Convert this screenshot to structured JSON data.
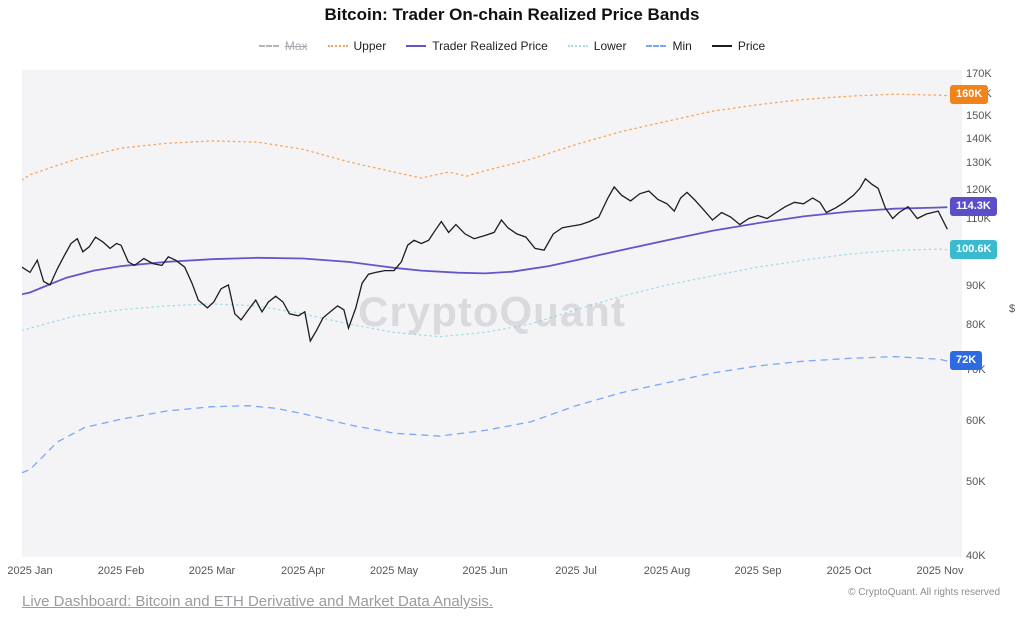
{
  "title": "Bitcoin: Trader On-chain Realized Price Bands",
  "watermark": "CryptoQuant",
  "legend": {
    "items": [
      {
        "label": "Max",
        "style": "dashed",
        "color": "#b4b4ba",
        "disabled": true
      },
      {
        "label": "Upper",
        "style": "dotted",
        "color": "#f9a35c",
        "disabled": false
      },
      {
        "label": "Trader Realized Price",
        "style": "solid",
        "color": "#6257c9",
        "disabled": false
      },
      {
        "label": "Lower",
        "style": "dotted",
        "color": "#a4dbe8",
        "disabled": false
      },
      {
        "label": "Min",
        "style": "dashed",
        "color": "#7aa7f8",
        "disabled": false
      },
      {
        "label": "Price",
        "style": "solid",
        "color": "#1c1c21",
        "disabled": false
      }
    ]
  },
  "axes": {
    "y_unit": "$",
    "y_scale": "log",
    "y_ticks": [
      {
        "v": 170,
        "label": "170K"
      },
      {
        "v": 160,
        "label": "160K"
      },
      {
        "v": 150,
        "label": "150K"
      },
      {
        "v": 140,
        "label": "140K"
      },
      {
        "v": 130,
        "label": "130K"
      },
      {
        "v": 120,
        "label": "120K"
      },
      {
        "v": 110,
        "label": "110K"
      },
      {
        "v": 100,
        "label": "100K"
      },
      {
        "v": 90,
        "label": "90K"
      },
      {
        "v": 80,
        "label": "80K"
      },
      {
        "v": 70,
        "label": "70K"
      },
      {
        "v": 60,
        "label": "60K"
      },
      {
        "v": 50,
        "label": "50K"
      },
      {
        "v": 40,
        "label": "40K"
      }
    ],
    "x_ticks": [
      "2025 Jan",
      "2025 Feb",
      "2025 Mar",
      "2025 Apr",
      "2025 May",
      "2025 Jun",
      "2025 Jul",
      "2025 Aug",
      "2025 Sep",
      "2025 Oct",
      "2025 Nov"
    ]
  },
  "badges": [
    {
      "series": "Upper",
      "label": "160K",
      "value_k": 160,
      "color": "#f2821a"
    },
    {
      "series": "Trader Realized Price",
      "label": "114.3K",
      "value_k": 114.3,
      "color": "#5b4ec8"
    },
    {
      "series": "Lower",
      "label": "100.6K",
      "value_k": 100.6,
      "color": "#3bb9cf"
    },
    {
      "series": "Min",
      "label": "72K",
      "value_k": 72,
      "color": "#2d6ce0"
    }
  ],
  "chart_data": {
    "type": "line",
    "title": "Bitcoin: Trader On-chain Realized Price Bands",
    "x_unit": "months of 2025 (Jan=0 .. Nov=10), values in thousands of USD",
    "ylim_k": [
      40,
      170
    ],
    "y_scale": "log",
    "grid": false,
    "legend_position": "top",
    "series": [
      {
        "name": "Max",
        "points": []
      },
      {
        "name": "Upper",
        "points": [
          [
            -0.09,
            124
          ],
          [
            0,
            126
          ],
          [
            0.25,
            129
          ],
          [
            0.5,
            132
          ],
          [
            1,
            136.5
          ],
          [
            1.5,
            138.5
          ],
          [
            2,
            139.5
          ],
          [
            2.5,
            139
          ],
          [
            3,
            136
          ],
          [
            3.5,
            131
          ],
          [
            4,
            127
          ],
          [
            4.3,
            124.8
          ],
          [
            4.6,
            127
          ],
          [
            4.8,
            125.5
          ],
          [
            5,
            127.5
          ],
          [
            5.5,
            132
          ],
          [
            6,
            138
          ],
          [
            6.5,
            143.5
          ],
          [
            7,
            148
          ],
          [
            7.5,
            152.5
          ],
          [
            8,
            155.5
          ],
          [
            8.5,
            158
          ],
          [
            9,
            159.5
          ],
          [
            9.5,
            160.5
          ],
          [
            10,
            160
          ],
          [
            10.08,
            159.8
          ]
        ]
      },
      {
        "name": "Trader Realized Price",
        "points": [
          [
            -0.09,
            88
          ],
          [
            0,
            88.5
          ],
          [
            0.2,
            90.5
          ],
          [
            0.4,
            92.5
          ],
          [
            0.7,
            94.5
          ],
          [
            1,
            95.8
          ],
          [
            1.5,
            97
          ],
          [
            2,
            97.8
          ],
          [
            2.5,
            98.2
          ],
          [
            3,
            98
          ],
          [
            3.5,
            97
          ],
          [
            4,
            95.3
          ],
          [
            4.3,
            94.5
          ],
          [
            4.7,
            93.9
          ],
          [
            5,
            93.7
          ],
          [
            5.3,
            94.2
          ],
          [
            5.7,
            95.8
          ],
          [
            6,
            97.5
          ],
          [
            6.5,
            100.5
          ],
          [
            7,
            103.5
          ],
          [
            7.5,
            106.5
          ],
          [
            8,
            109
          ],
          [
            8.5,
            111.2
          ],
          [
            9,
            112.8
          ],
          [
            9.5,
            113.8
          ],
          [
            10,
            114.2
          ],
          [
            10.08,
            114.3
          ]
        ]
      },
      {
        "name": "Lower",
        "points": [
          [
            -0.09,
            79
          ],
          [
            0,
            79.5
          ],
          [
            0.5,
            82.5
          ],
          [
            1,
            84
          ],
          [
            1.5,
            85
          ],
          [
            2,
            85.5
          ],
          [
            2.5,
            85
          ],
          [
            3,
            83
          ],
          [
            3.5,
            80.5
          ],
          [
            4,
            78.5
          ],
          [
            4.5,
            77.5
          ],
          [
            5,
            78.5
          ],
          [
            5.5,
            80.5
          ],
          [
            6,
            84
          ],
          [
            6.5,
            87.5
          ],
          [
            7,
            90.5
          ],
          [
            7.5,
            93
          ],
          [
            8,
            95.5
          ],
          [
            8.5,
            97.5
          ],
          [
            9,
            99.3
          ],
          [
            9.5,
            100.4
          ],
          [
            10,
            100.8
          ],
          [
            10.08,
            100.6
          ]
        ]
      },
      {
        "name": "Min",
        "points": [
          [
            -0.09,
            51.5
          ],
          [
            0,
            52
          ],
          [
            0.3,
            56.5
          ],
          [
            0.6,
            59
          ],
          [
            1,
            60.5
          ],
          [
            1.5,
            62
          ],
          [
            2,
            62.8
          ],
          [
            2.4,
            63
          ],
          [
            2.7,
            62.5
          ],
          [
            3,
            61.5
          ],
          [
            3.5,
            59.5
          ],
          [
            4,
            58
          ],
          [
            4.5,
            57.5
          ],
          [
            5,
            58.5
          ],
          [
            5.5,
            60
          ],
          [
            6,
            63
          ],
          [
            6.5,
            65.5
          ],
          [
            7,
            67.5
          ],
          [
            7.5,
            69.5
          ],
          [
            8,
            71
          ],
          [
            8.5,
            72
          ],
          [
            9,
            72.6
          ],
          [
            9.5,
            73
          ],
          [
            10,
            72.4
          ],
          [
            10.08,
            72
          ]
        ]
      },
      {
        "name": "Price",
        "points": [
          [
            -0.09,
            95.5
          ],
          [
            0,
            94
          ],
          [
            0.08,
            97.5
          ],
          [
            0.15,
            91.5
          ],
          [
            0.22,
            90.5
          ],
          [
            0.3,
            95
          ],
          [
            0.38,
            99
          ],
          [
            0.45,
            102.5
          ],
          [
            0.52,
            104
          ],
          [
            0.58,
            100
          ],
          [
            0.65,
            101.5
          ],
          [
            0.72,
            104.5
          ],
          [
            0.8,
            103
          ],
          [
            0.88,
            101
          ],
          [
            0.95,
            102.5
          ],
          [
            1,
            102
          ],
          [
            1.08,
            97
          ],
          [
            1.15,
            96
          ],
          [
            1.25,
            98
          ],
          [
            1.35,
            96.5
          ],
          [
            1.45,
            96
          ],
          [
            1.52,
            98.5
          ],
          [
            1.6,
            97.5
          ],
          [
            1.7,
            95.5
          ],
          [
            1.78,
            91
          ],
          [
            1.85,
            86.5
          ],
          [
            1.95,
            84.5
          ],
          [
            2.02,
            86
          ],
          [
            2.1,
            89.5
          ],
          [
            2.18,
            90.5
          ],
          [
            2.25,
            83
          ],
          [
            2.32,
            81.5
          ],
          [
            2.4,
            84
          ],
          [
            2.48,
            86.5
          ],
          [
            2.55,
            83.5
          ],
          [
            2.62,
            86
          ],
          [
            2.7,
            87.5
          ],
          [
            2.78,
            86
          ],
          [
            2.85,
            83
          ],
          [
            2.95,
            82.5
          ],
          [
            3.02,
            83.5
          ],
          [
            3.08,
            76.5
          ],
          [
            3.15,
            79
          ],
          [
            3.22,
            82
          ],
          [
            3.3,
            83.5
          ],
          [
            3.38,
            85
          ],
          [
            3.45,
            84
          ],
          [
            3.5,
            79.5
          ],
          [
            3.58,
            84.5
          ],
          [
            3.65,
            91
          ],
          [
            3.72,
            93.5
          ],
          [
            3.8,
            94
          ],
          [
            3.9,
            94.5
          ],
          [
            4,
            94.5
          ],
          [
            4.08,
            97
          ],
          [
            4.15,
            102
          ],
          [
            4.22,
            103.5
          ],
          [
            4.3,
            102.5
          ],
          [
            4.38,
            103.5
          ],
          [
            4.45,
            106.5
          ],
          [
            4.52,
            109.5
          ],
          [
            4.6,
            106
          ],
          [
            4.68,
            108.5
          ],
          [
            4.78,
            105.5
          ],
          [
            4.88,
            104
          ],
          [
            5,
            105
          ],
          [
            5.1,
            106
          ],
          [
            5.18,
            110
          ],
          [
            5.25,
            107.5
          ],
          [
            5.35,
            105.5
          ],
          [
            5.45,
            104.5
          ],
          [
            5.55,
            101
          ],
          [
            5.65,
            100.5
          ],
          [
            5.75,
            105.5
          ],
          [
            5.85,
            107.5
          ],
          [
            5.95,
            108
          ],
          [
            6.05,
            108.5
          ],
          [
            6.15,
            109.5
          ],
          [
            6.25,
            111
          ],
          [
            6.35,
            117.5
          ],
          [
            6.42,
            121.5
          ],
          [
            6.5,
            118.5
          ],
          [
            6.6,
            116.5
          ],
          [
            6.7,
            119
          ],
          [
            6.8,
            120
          ],
          [
            6.9,
            117
          ],
          [
            7,
            115.5
          ],
          [
            7.08,
            113
          ],
          [
            7.15,
            117.5
          ],
          [
            7.22,
            119.5
          ],
          [
            7.3,
            117
          ],
          [
            7.4,
            113.5
          ],
          [
            7.5,
            110
          ],
          [
            7.6,
            112.5
          ],
          [
            7.7,
            111
          ],
          [
            7.8,
            108.5
          ],
          [
            7.9,
            110.5
          ],
          [
            8,
            111.5
          ],
          [
            8.1,
            110.5
          ],
          [
            8.2,
            112.5
          ],
          [
            8.3,
            114.5
          ],
          [
            8.4,
            116
          ],
          [
            8.5,
            115.5
          ],
          [
            8.6,
            117.5
          ],
          [
            8.68,
            116
          ],
          [
            8.75,
            112.5
          ],
          [
            8.85,
            114
          ],
          [
            8.95,
            116
          ],
          [
            9.05,
            118.5
          ],
          [
            9.12,
            121
          ],
          [
            9.18,
            124.5
          ],
          [
            9.25,
            122.5
          ],
          [
            9.32,
            121
          ],
          [
            9.4,
            114
          ],
          [
            9.48,
            110.5
          ],
          [
            9.55,
            112.5
          ],
          [
            9.65,
            114.5
          ],
          [
            9.75,
            110.5
          ],
          [
            9.85,
            112
          ],
          [
            9.98,
            113
          ],
          [
            10.03,
            110
          ],
          [
            10.08,
            107
          ]
        ]
      }
    ]
  },
  "footer": {
    "link": "Live Dashboard: Bitcoin and ETH Derivative and Market Data Analysis.",
    "copyright": "© CryptoQuant. All rights reserved"
  }
}
